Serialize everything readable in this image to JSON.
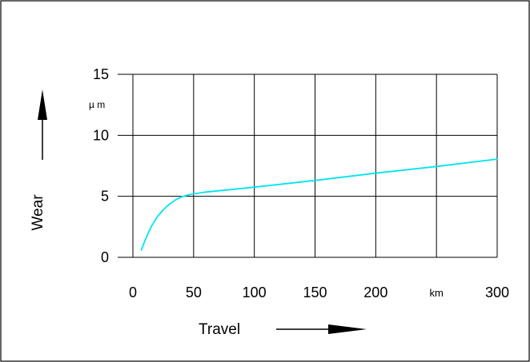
{
  "chart_data": {
    "type": "line",
    "xlabel": "Travel",
    "ylabel": "Wear",
    "y_unit": "µ m",
    "x_unit": "km",
    "xlim": [
      0,
      300
    ],
    "ylim": [
      0,
      15
    ],
    "x_ticks": [
      "0",
      "50",
      "100",
      "150",
      "200",
      "km",
      "300"
    ],
    "y_ticks": [
      "0",
      "5",
      "10",
      "15"
    ],
    "grid": true,
    "series": [
      {
        "color": "#00e5ee",
        "x": [
          7,
          10,
          15,
          20,
          25,
          30,
          35,
          40,
          45,
          50,
          60,
          80,
          100,
          150,
          200,
          250,
          300
        ],
        "y": [
          0.6,
          1.4,
          2.5,
          3.3,
          3.9,
          4.35,
          4.7,
          4.95,
          5.1,
          5.2,
          5.35,
          5.55,
          5.75,
          6.3,
          6.9,
          7.45,
          8.05
        ]
      }
    ]
  }
}
